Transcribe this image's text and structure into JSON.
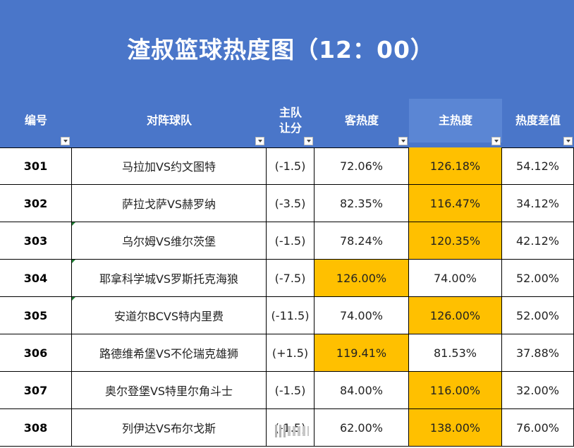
{
  "title": "渣叔篮球热度图（12：00）",
  "columns": [
    {
      "key": "id",
      "label": "编号"
    },
    {
      "key": "match",
      "label": "对阵球队"
    },
    {
      "key": "handicap",
      "label": "主队\n让分"
    },
    {
      "key": "away_heat",
      "label": "客热度"
    },
    {
      "key": "home_heat",
      "label": "主热度"
    },
    {
      "key": "diff",
      "label": "热度差值"
    }
  ],
  "highlight_color": "#ffc000",
  "header_color": "#4a76c9",
  "rows": [
    {
      "id": "301",
      "match": "马拉加VS约文图特",
      "handicap": "(-1.5)",
      "away_heat": "72.06%",
      "home_heat": "126.18%",
      "diff": "54.12%",
      "highlight": "home"
    },
    {
      "id": "302",
      "match": "萨拉戈萨VS赫罗纳",
      "handicap": "(-3.5)",
      "away_heat": "82.35%",
      "home_heat": "116.47%",
      "diff": "34.12%",
      "highlight": "home"
    },
    {
      "id": "303",
      "match": "乌尔姆VS维尔茨堡",
      "handicap": "(-1.5)",
      "away_heat": "78.24%",
      "home_heat": "120.35%",
      "diff": "42.12%",
      "highlight": "home"
    },
    {
      "id": "304",
      "match": "耶拿科学城VS罗斯托克海狼",
      "handicap": "(-7.5)",
      "away_heat": "126.00%",
      "home_heat": "74.00%",
      "diff": "52.00%",
      "highlight": "away"
    },
    {
      "id": "305",
      "match": "安道尔BCVS特内里费",
      "handicap": "(-11.5)",
      "away_heat": "74.00%",
      "home_heat": "126.00%",
      "diff": "52.00%",
      "highlight": "home"
    },
    {
      "id": "306",
      "match": "路德维希堡VS不伦瑞克雄狮",
      "handicap": "(+1.5)",
      "away_heat": "119.41%",
      "home_heat": "81.53%",
      "diff": "37.88%",
      "highlight": "away"
    },
    {
      "id": "307",
      "match": "奥尔登堡VS特里尔角斗士",
      "handicap": "(-1.5)",
      "away_heat": "84.00%",
      "home_heat": "116.00%",
      "diff": "32.00%",
      "highlight": "home"
    },
    {
      "id": "308",
      "match": "列伊达VS布尔戈斯",
      "handicap": "(-1.5)",
      "away_heat": "62.00%",
      "home_heat": "138.00%",
      "diff": "76.00%",
      "highlight": "home"
    }
  ]
}
